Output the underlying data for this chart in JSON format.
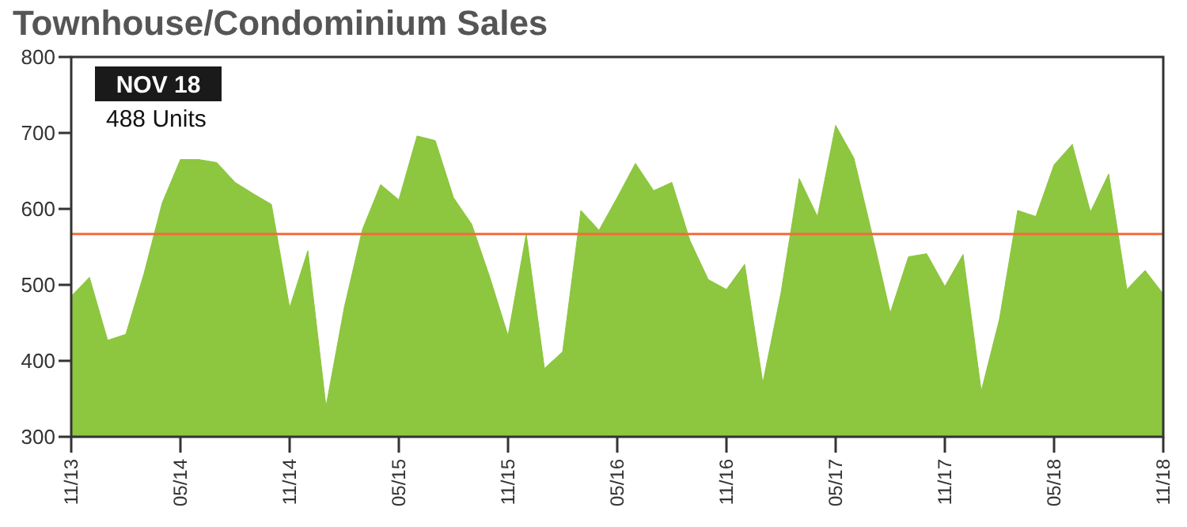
{
  "chart_data": {
    "type": "area",
    "title": "Townhouse/Condominium Sales",
    "categories": [
      "11/13",
      null,
      null,
      null,
      null,
      null,
      "05/14",
      null,
      null,
      null,
      null,
      null,
      "11/14",
      null,
      null,
      null,
      null,
      null,
      "05/15",
      null,
      null,
      null,
      null,
      null,
      "11/15",
      null,
      null,
      null,
      null,
      null,
      "05/16",
      null,
      null,
      null,
      null,
      null,
      "11/16",
      null,
      null,
      null,
      null,
      null,
      "05/17",
      null,
      null,
      null,
      null,
      null,
      "11/17",
      null,
      null,
      null,
      null,
      null,
      "05/18",
      null,
      null,
      null,
      null,
      null,
      "11/18"
    ],
    "series": [
      {
        "color": "#8dc63f",
        "values": [
          485,
          510,
          427,
          435,
          515,
          608,
          665,
          665,
          661,
          635,
          620,
          606,
          470,
          545,
          340,
          470,
          573,
          632,
          612,
          696,
          690,
          615,
          580,
          510,
          433,
          567,
          390,
          412,
          598,
          572,
          615,
          660,
          624,
          635,
          558,
          507,
          494,
          527,
          371,
          490,
          640,
          590,
          710,
          667,
          567,
          463,
          537,
          541,
          498,
          540,
          360,
          455,
          598,
          590,
          658,
          685,
          596,
          646,
          494,
          519,
          488
        ]
      }
    ],
    "ylim": [
      300,
      800
    ],
    "yticks": [
      300,
      400,
      500,
      600,
      700,
      800
    ],
    "ref_lines": [
      {
        "axis": "y",
        "value": 567,
        "color": "#f26b3a"
      }
    ],
    "annotations": [
      "NOV 18",
      "488 Units"
    ],
    "grid": false
  }
}
